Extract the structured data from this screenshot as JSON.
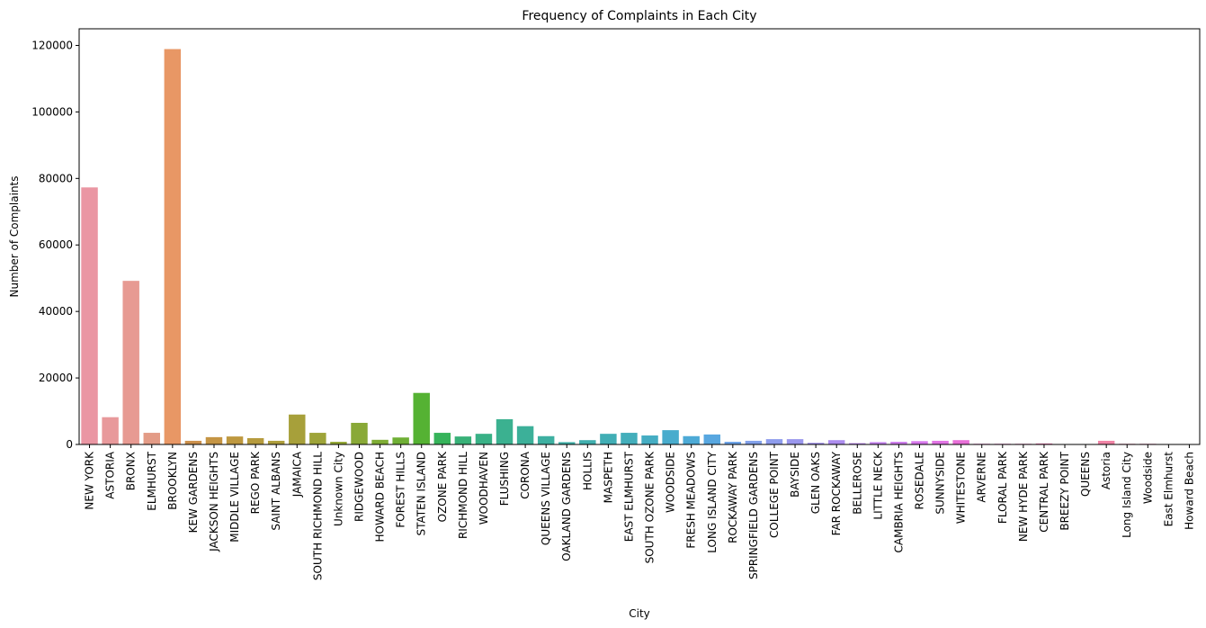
{
  "chart_data": {
    "type": "bar",
    "title": "Frequency of Complaints in Each City",
    "xlabel": "City",
    "ylabel": "Number of Complaints",
    "ylim": [
      0,
      125000
    ],
    "yticks": [
      0,
      20000,
      40000,
      60000,
      80000,
      100000,
      120000
    ],
    "grid": false,
    "categories": [
      "NEW YORK",
      "ASTORIA",
      "BRONX",
      "ELMHURST",
      "BROOKLYN",
      "KEW GARDENS",
      "JACKSON HEIGHTS",
      "MIDDLE VILLAGE",
      "REGO PARK",
      "SAINT ALBANS",
      "JAMAICA",
      "SOUTH RICHMOND HILL",
      "Unknown City",
      "RIDGEWOOD",
      "HOWARD BEACH",
      "FOREST HILLS",
      "STATEN ISLAND",
      "OZONE PARK",
      "RICHMOND HILL",
      "WOODHAVEN",
      "FLUSHING",
      "CORONA",
      "QUEENS VILLAGE",
      "OAKLAND GARDENS",
      "HOLLIS",
      "MASPETH",
      "EAST ELMHURST",
      "SOUTH OZONE PARK",
      "WOODSIDE",
      "FRESH MEADOWS",
      "LONG ISLAND CITY",
      "ROCKAWAY PARK",
      "SPRINGFIELD GARDENS",
      "COLLEGE POINT",
      "BAYSIDE",
      "GLEN OAKS",
      "FAR ROCKAWAY",
      "BELLEROSE",
      "LITTLE NECK",
      "CAMBRIA HEIGHTS",
      "ROSEDALE",
      "SUNNYSIDE",
      "WHITESTONE",
      "ARVERNE",
      "FLORAL PARK",
      "NEW HYDE PARK",
      "CENTRAL PARK",
      "BREEZY POINT",
      "QUEENS",
      "Astoria",
      "Long Island City",
      "Woodside",
      "East Elmhurst",
      "Howard Beach"
    ],
    "values": [
      77300,
      8200,
      49200,
      3500,
      118900,
      1100,
      2200,
      2400,
      1900,
      1100,
      9000,
      3500,
      800,
      6500,
      1400,
      2100,
      15500,
      3500,
      2400,
      3200,
      7600,
      5500,
      2500,
      700,
      1300,
      3200,
      3500,
      2700,
      4300,
      2500,
      3000,
      800,
      1100,
      1600,
      1600,
      500,
      1300,
      400,
      700,
      800,
      1000,
      1100,
      1300,
      200,
      200,
      200,
      300,
      100,
      100,
      1100,
      200,
      200,
      100,
      100
    ],
    "colors": [
      "#ea96a3",
      "#e8999b",
      "#e79a92",
      "#e39b86",
      "#e89765",
      "#cc904c",
      "#c59544",
      "#be983f",
      "#b69b3e",
      "#ae9e3c",
      "#a7a03a",
      "#9ea439",
      "#93a736",
      "#89a937",
      "#7fad35",
      "#6faf35",
      "#55b233",
      "#36b35a",
      "#38b178",
      "#39b186",
      "#3bb190",
      "#3cb099",
      "#3eb0a1",
      "#40b0a8",
      "#40afae",
      "#41aeb5",
      "#43aebb",
      "#45adc3",
      "#48accd",
      "#4daad6",
      "#58a7e0",
      "#6da3e7",
      "#82a1ea",
      "#8e9cec",
      "#9a97ed",
      "#a392ee",
      "#ad8dee",
      "#ba87ee",
      "#c482ee",
      "#ce7eed",
      "#d778ec",
      "#e174e4",
      "#e870d8",
      "#ec6ed0",
      "#ec70c6",
      "#ed73bb",
      "#ed76b0",
      "#ed7aa5",
      "#ed7d9b",
      "#ef83a5",
      "#ee87b0",
      "#ee89b9",
      "#ee8bc2",
      "#ed8ec9"
    ]
  }
}
